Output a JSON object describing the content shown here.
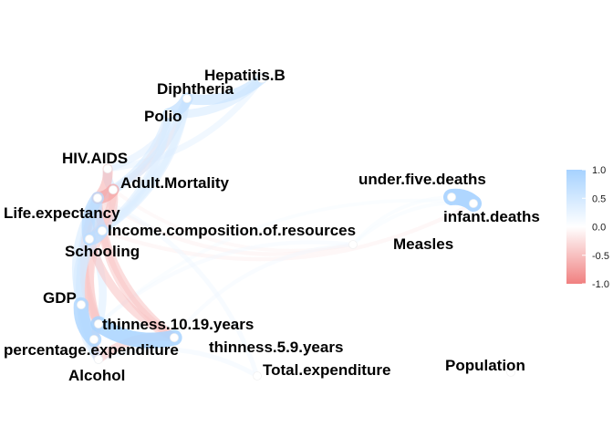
{
  "legend": {
    "ticks": [
      "1.0",
      "0.5",
      "0.0",
      "-0.5",
      "-1.0"
    ],
    "values": [
      1.0,
      0.5,
      0.0,
      -0.5,
      -1.0
    ],
    "color_high": "#a6d2ff",
    "color_mid": "#ffffff",
    "color_low": "#f08080"
  },
  "nodes": [
    {
      "id": "hep",
      "label": "Hepatitis.B"
    },
    {
      "id": "dip",
      "label": "Diphtheria"
    },
    {
      "id": "pol",
      "label": "Polio"
    },
    {
      "id": "hiv",
      "label": "HIV.AIDS"
    },
    {
      "id": "adm",
      "label": "Adult.Mortality"
    },
    {
      "id": "lex",
      "label": "Life.expectancy"
    },
    {
      "id": "inc",
      "label": "Income.composition.of.resources"
    },
    {
      "id": "sch",
      "label": "Schooling"
    },
    {
      "id": "gdp",
      "label": "GDP"
    },
    {
      "id": "t10",
      "label": "thinness.10.19.years"
    },
    {
      "id": "pex",
      "label": "percentage.expenditure"
    },
    {
      "id": "t59",
      "label": "thinness.5.9.years"
    },
    {
      "id": "alc",
      "label": "Alcohol"
    },
    {
      "id": "tex",
      "label": "Total.expenditure"
    },
    {
      "id": "u5d",
      "label": "under.five.deaths"
    },
    {
      "id": "inf",
      "label": "infant.deaths"
    },
    {
      "id": "mea",
      "label": "Measles"
    },
    {
      "id": "pop",
      "label": "Population"
    }
  ],
  "edges": [
    {
      "from": "lex",
      "to": "sch",
      "r": 0.75
    },
    {
      "from": "lex",
      "to": "inc",
      "r": 0.7
    },
    {
      "from": "lex",
      "to": "adm",
      "r": -0.7
    },
    {
      "from": "lex",
      "to": "hiv",
      "r": -0.55
    },
    {
      "from": "lex",
      "to": "t10",
      "r": -0.45
    },
    {
      "from": "lex",
      "to": "t59",
      "r": -0.45
    },
    {
      "from": "lex",
      "to": "gdp",
      "r": 0.45
    },
    {
      "from": "lex",
      "to": "pex",
      "r": 0.4
    },
    {
      "from": "lex",
      "to": "alc",
      "r": 0.4
    },
    {
      "from": "lex",
      "to": "pol",
      "r": 0.45
    },
    {
      "from": "lex",
      "to": "dip",
      "r": 0.45
    },
    {
      "from": "lex",
      "to": "mea",
      "r": -0.15
    },
    {
      "from": "sch",
      "to": "inc",
      "r": 0.75
    },
    {
      "from": "sch",
      "to": "alc",
      "r": 0.5
    },
    {
      "from": "sch",
      "to": "gdp",
      "r": 0.45
    },
    {
      "from": "sch",
      "to": "adm",
      "r": -0.45
    },
    {
      "from": "sch",
      "to": "t10",
      "r": -0.45
    },
    {
      "from": "sch",
      "to": "t59",
      "r": -0.45
    },
    {
      "from": "sch",
      "to": "pol",
      "r": 0.4
    },
    {
      "from": "sch",
      "to": "dip",
      "r": 0.4
    },
    {
      "from": "inc",
      "to": "adm",
      "r": -0.45
    },
    {
      "from": "inc",
      "to": "t10",
      "r": -0.42
    },
    {
      "from": "inc",
      "to": "t59",
      "r": -0.42
    },
    {
      "from": "inc",
      "to": "pol",
      "r": 0.38
    },
    {
      "from": "inc",
      "to": "dip",
      "r": 0.4
    },
    {
      "from": "inc",
      "to": "gdp",
      "r": 0.45
    },
    {
      "from": "inc",
      "to": "inf",
      "r": -0.15
    },
    {
      "from": "gdp",
      "to": "pex",
      "r": 0.9
    },
    {
      "from": "gdp",
      "to": "t10",
      "r": -0.3
    },
    {
      "from": "gdp",
      "to": "alc",
      "r": 0.35
    },
    {
      "from": "pex",
      "to": "alc",
      "r": 0.35
    },
    {
      "from": "pex",
      "to": "sch",
      "r": 0.4
    },
    {
      "from": "t10",
      "to": "t59",
      "r": 0.95
    },
    {
      "from": "t10",
      "to": "alc",
      "r": -0.45
    },
    {
      "from": "t59",
      "to": "alc",
      "r": -0.45
    },
    {
      "from": "pol",
      "to": "dip",
      "r": 0.7
    },
    {
      "from": "pol",
      "to": "hep",
      "r": 0.45
    },
    {
      "from": "dip",
      "to": "hep",
      "r": 0.6
    },
    {
      "from": "hiv",
      "to": "adm",
      "r": 0.5
    },
    {
      "from": "hiv",
      "to": "hep",
      "r": 0.3
    },
    {
      "from": "hiv",
      "to": "dip",
      "r": 0.35
    },
    {
      "from": "adm",
      "to": "pol",
      "r": -0.3
    },
    {
      "from": "adm",
      "to": "dip",
      "r": -0.3
    },
    {
      "from": "adm",
      "to": "t10",
      "r": -0.35
    },
    {
      "from": "adm",
      "to": "mea",
      "r": -0.12
    },
    {
      "from": "inf",
      "to": "u5d",
      "r": 1.0
    },
    {
      "from": "inf",
      "to": "mea",
      "r": 0.12
    },
    {
      "from": "inf",
      "to": "t10",
      "r": 0.12
    },
    {
      "from": "u5d",
      "to": "mea",
      "r": 0.12
    },
    {
      "from": "tex",
      "to": "alc",
      "r": 0.2
    },
    {
      "from": "tex",
      "to": "lex",
      "r": 0.2
    },
    {
      "from": "mea",
      "to": "t10",
      "r": 0.15
    },
    {
      "from": "mea",
      "to": "t59",
      "r": 0.15
    }
  ]
}
